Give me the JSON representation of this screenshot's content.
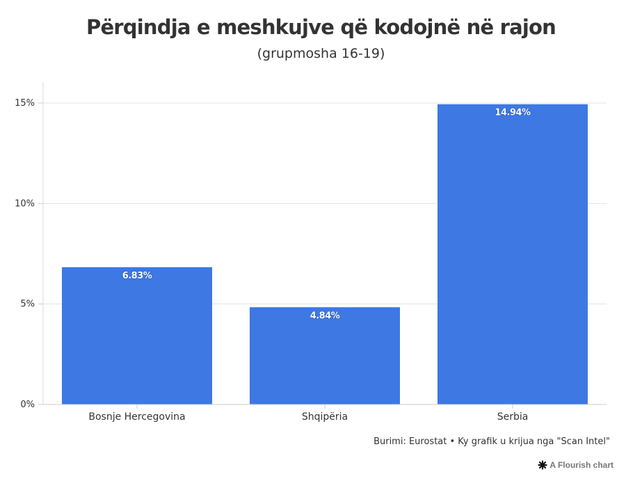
{
  "chart_data": {
    "type": "bar",
    "title": "Përqindja e meshkujve që kodojnë në rajon",
    "subtitle": "(grupmosha 16-19)",
    "categories": [
      "Bosnje Hercegovina",
      "Shqipëria",
      "Serbia"
    ],
    "values": [
      6.83,
      4.84,
      14.94
    ],
    "data_labels": [
      "6.83%",
      "4.84%",
      "14.94%"
    ],
    "ylim": [
      0,
      15
    ],
    "yticks": [
      0,
      5,
      10,
      15
    ],
    "ytick_labels": [
      "0%",
      "5%",
      "10%",
      "15%"
    ],
    "xlabel": "",
    "ylabel": "",
    "grid": true,
    "bar_color": "#3d78e3"
  },
  "footer": {
    "source": "Burimi: Eurostat • Ky grafik u krijua nga \"Scan Intel\"",
    "flourish_label": "A Flourish chart"
  },
  "icons": {
    "flourish": "flourish-asterisk-icon"
  }
}
